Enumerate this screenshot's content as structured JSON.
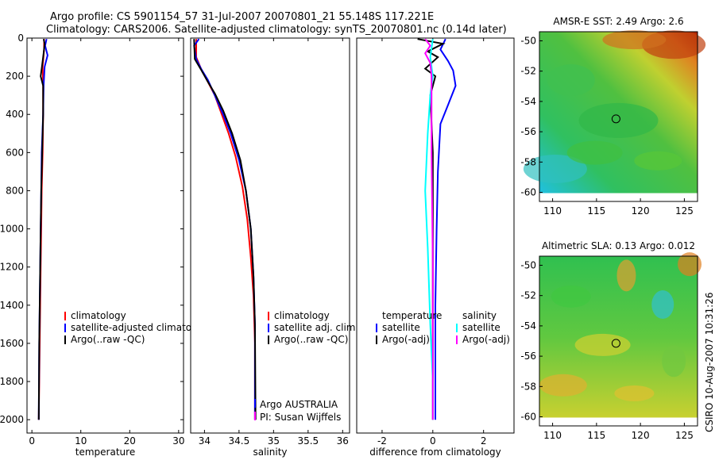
{
  "header": {
    "line1": "Argo profile: CS 5901154_57 31-Jul-2007 20070801_21 55.148S 117.221E",
    "line2": "Climatology: CARS2006. Satellite-adjusted climatology: synTS_20070801.nc (0.14d later)"
  },
  "side_stamp": "CSIRO 10-Aug-2007 10:31:26",
  "colors": {
    "black": "#000000",
    "red": "#ff0000",
    "blue": "#0000ff",
    "cyan": "#00ffff",
    "magenta": "#ff00ff"
  },
  "chart_data": [
    {
      "type": "line",
      "xlabel": "temperature",
      "xlim": [
        -1,
        31
      ],
      "ylim": [
        2070,
        0
      ],
      "xticks": [
        0,
        10,
        20,
        30
      ],
      "yticks": [
        0,
        200,
        400,
        600,
        800,
        1000,
        1200,
        1400,
        1600,
        1800,
        2000
      ],
      "legend": [
        "climatology",
        "satellite-adjusted climatology",
        "Argo(..raw -QC)"
      ],
      "series": [
        {
          "color": "red",
          "x": [
            2.5,
            2.5,
            2.2,
            2.3,
            2.3,
            2.2,
            2.0,
            1.9,
            1.8,
            1.7,
            1.6,
            1.5,
            1.4
          ],
          "y": [
            5,
            60,
            150,
            250,
            400,
            600,
            800,
            1000,
            1200,
            1400,
            1600,
            1800,
            2000
          ]
        },
        {
          "color": "blue",
          "x": [
            3.0,
            2.7,
            3.2,
            2.6,
            2.4,
            2.3,
            2.0,
            1.9,
            1.8,
            1.7,
            1.6,
            1.5,
            1.4
          ],
          "y": [
            5,
            40,
            90,
            150,
            250,
            400,
            600,
            800,
            1000,
            1200,
            1400,
            1600,
            2000
          ]
        },
        {
          "color": "black",
          "x": [
            2.4,
            2.6,
            2.4,
            2.0,
            1.8,
            2.3,
            2.3,
            2.1,
            1.9,
            1.8,
            1.7,
            1.6,
            1.5,
            1.4
          ],
          "y": [
            5,
            30,
            80,
            160,
            200,
            250,
            400,
            600,
            800,
            1000,
            1200,
            1400,
            1600,
            2000
          ]
        }
      ]
    },
    {
      "type": "line",
      "xlabel": "salinity",
      "xlim": [
        33.8,
        36.1
      ],
      "ylim": [
        2070,
        0
      ],
      "xticks": [
        34,
        34.5,
        35,
        35.5,
        36
      ],
      "legend": [
        "climatology",
        "satellite adj. clim.",
        "Argo(..raw -QC)"
      ],
      "annotations": [
        "Argo AUSTRALIA",
        "PI: Susan Wijffels"
      ],
      "series": [
        {
          "color": "red",
          "x": [
            33.88,
            33.88,
            33.95,
            34.05,
            34.15,
            34.25,
            34.35,
            34.45,
            34.55,
            34.62,
            34.67,
            34.71,
            34.73,
            34.73
          ],
          "y": [
            5,
            100,
            160,
            230,
            300,
            400,
            500,
            620,
            780,
            950,
            1150,
            1350,
            1600,
            2000
          ]
        },
        {
          "color": "blue",
          "x": [
            33.92,
            33.85,
            33.88,
            33.95,
            34.05,
            34.15,
            34.27,
            34.38,
            34.5,
            34.6,
            34.67,
            34.71,
            34.73,
            34.73
          ],
          "y": [
            5,
            40,
            110,
            160,
            220,
            300,
            400,
            500,
            640,
            800,
            1000,
            1250,
            1500,
            2000
          ]
        },
        {
          "color": "black",
          "x": [
            33.85,
            33.86,
            33.95,
            34.05,
            34.15,
            34.27,
            34.4,
            34.52,
            34.6,
            34.67,
            34.71,
            34.73,
            34.74
          ],
          "y": [
            5,
            110,
            165,
            230,
            290,
            380,
            500,
            640,
            800,
            1000,
            1250,
            1500,
            2000
          ]
        }
      ]
    },
    {
      "type": "line",
      "xlabel": "difference from climatology",
      "xlim": [
        -3,
        3.2
      ],
      "ylim": [
        2070,
        0
      ],
      "xticks": [
        -2,
        0,
        2
      ],
      "legend_groups": [
        {
          "title": "temperature",
          "items": [
            "satellite",
            "Argo(-adj)"
          ]
        },
        {
          "title": "salinity",
          "items": [
            "satellite",
            "Argo(-adj)"
          ]
        }
      ],
      "series": [
        {
          "color": "blue",
          "name": "temperature satellite",
          "x": [
            0.5,
            0.3,
            0.6,
            0.8,
            0.9,
            0.6,
            0.3,
            0.2,
            0.15,
            0.1,
            0.1,
            0.1
          ],
          "y": [
            5,
            60,
            120,
            170,
            250,
            350,
            450,
            700,
            1000,
            1400,
            1800,
            2000
          ]
        },
        {
          "color": "black",
          "name": "temperature Argo(-adj)",
          "x": [
            -0.6,
            0.4,
            -0.2,
            0.2,
            -0.3,
            0.1,
            -0.1,
            0.0,
            0.0,
            0.0,
            0.0
          ],
          "y": [
            5,
            30,
            70,
            100,
            160,
            200,
            300,
            600,
            1000,
            1500,
            2000
          ]
        },
        {
          "color": "cyan",
          "name": "salinity satellite",
          "x": [
            0.0,
            -0.1,
            0.0,
            -0.1,
            -0.2,
            -0.3,
            -0.2,
            -0.1,
            0.0,
            0.0
          ],
          "y": [
            5,
            100,
            200,
            300,
            500,
            800,
            1100,
            1500,
            1800,
            2000
          ]
        },
        {
          "color": "magenta",
          "name": "salinity Argo(-adj)",
          "x": [
            -0.3,
            -0.1,
            -0.3,
            -0.1,
            -0.05,
            -0.05,
            0.0,
            0.0
          ],
          "y": [
            5,
            40,
            80,
            130,
            200,
            600,
            1200,
            2000
          ]
        }
      ]
    },
    {
      "type": "heatmap",
      "title": "AMSR-E SST: 2.49 Argo: 2.6",
      "xlim": [
        108.5,
        126.5
      ],
      "ylim": [
        -60.6,
        -49.4
      ],
      "xticks": [
        110,
        115,
        120,
        125
      ],
      "yticks": [
        -50,
        -52,
        -54,
        -56,
        -58,
        -60
      ],
      "marker": {
        "lon": 117.22,
        "lat": -55.15
      }
    },
    {
      "type": "heatmap",
      "title": "Altimetric SLA: 0.13 Argo: 0.012",
      "xlim": [
        108.5,
        126.5
      ],
      "ylim": [
        -60.6,
        -49.4
      ],
      "xticks": [
        110,
        115,
        120,
        125
      ],
      "yticks": [
        -50,
        -52,
        -54,
        -56,
        -58,
        -60
      ],
      "marker": {
        "lon": 117.22,
        "lat": -55.15
      }
    }
  ]
}
